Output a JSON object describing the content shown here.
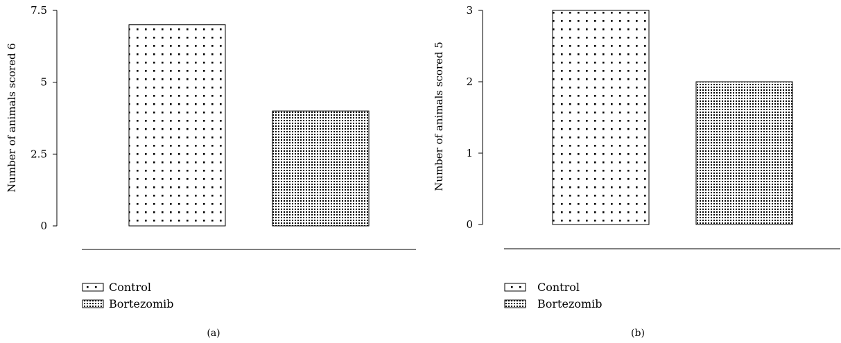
{
  "pattern_colors": {
    "ink": "#000000",
    "paper": "#ffffff"
  },
  "chart_data": [
    {
      "type": "bar",
      "categories": [
        "Control",
        "Bortezomib"
      ],
      "values": [
        7,
        4
      ],
      "ylabel": "Number of animals scored 6",
      "ylim": [
        0,
        7.5
      ],
      "yticks": [
        0,
        2.5,
        5,
        7.5
      ],
      "ytick_labels": [
        "0",
        "2.5",
        "5",
        "7.5"
      ],
      "legend": [
        "Control",
        "Bortezomib"
      ],
      "legend_placement": "bottom-left",
      "patterns": [
        "sparse-dots",
        "dense-dots"
      ],
      "panel_label": "(a)",
      "grid": false
    },
    {
      "type": "bar",
      "categories": [
        "Control",
        "Bortezomib"
      ],
      "values": [
        3,
        2
      ],
      "ylabel": "Number of animals scored 5",
      "ylim": [
        0,
        3
      ],
      "yticks": [
        0,
        1,
        2,
        3
      ],
      "ytick_labels": [
        "0",
        "1",
        "2",
        "3"
      ],
      "legend": [
        "Control",
        "Bortezomib"
      ],
      "legend_placement": "bottom-left",
      "patterns": [
        "sparse-dots",
        "dense-dots"
      ],
      "panel_label": "(b)",
      "grid": false
    }
  ]
}
